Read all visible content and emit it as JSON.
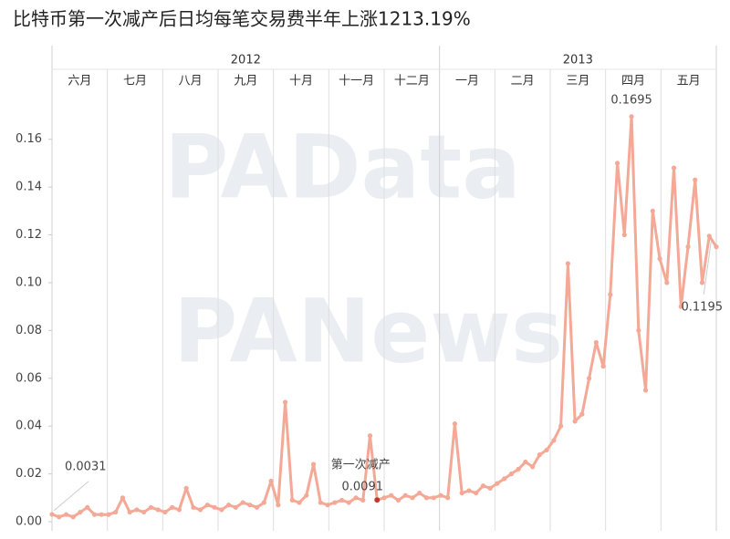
{
  "chart_data": {
    "type": "line",
    "title": "比特币第一次减产后日均每笔交易费半年上涨1213.19%",
    "years": [
      {
        "label": "2012",
        "months": [
          "六月",
          "七月",
          "八月",
          "九月",
          "十月",
          "十一月",
          "十二月"
        ]
      },
      {
        "label": "2013",
        "months": [
          "一月",
          "二月",
          "三月",
          "四月",
          "五月"
        ]
      }
    ],
    "watermarks": [
      "PAData",
      "PANews"
    ],
    "annotation": "第一次减产",
    "ylim": [
      -0.0038,
      0.203
    ],
    "yticks": [
      {
        "value": 0,
        "label": "0.00"
      },
      {
        "value": 0.02,
        "label": "0.02"
      },
      {
        "value": 0.04,
        "label": "0.04"
      },
      {
        "value": 0.06,
        "label": "0.06"
      },
      {
        "value": 0.08,
        "label": "0.08"
      },
      {
        "value": 0.1,
        "label": "0.10"
      },
      {
        "value": 0.12,
        "label": "0.12"
      },
      {
        "value": 0.14,
        "label": "0.14"
      },
      {
        "value": 0.16,
        "label": "0.16"
      }
    ],
    "series": [
      {
        "name": "日均每笔交易费",
        "color": "#f4a896",
        "values": [
          0.0031,
          0.002,
          0.003,
          0.002,
          0.004,
          0.006,
          0.003,
          0.003,
          0.003,
          0.004,
          0.01,
          0.004,
          0.005,
          0.004,
          0.006,
          0.005,
          0.004,
          0.006,
          0.005,
          0.014,
          0.006,
          0.005,
          0.007,
          0.006,
          0.005,
          0.007,
          0.006,
          0.008,
          0.007,
          0.006,
          0.008,
          0.017,
          0.007,
          0.05,
          0.009,
          0.008,
          0.011,
          0.024,
          0.008,
          0.007,
          0.008,
          0.009,
          0.008,
          0.01,
          0.009,
          0.036,
          0.0091,
          0.01,
          0.011,
          0.009,
          0.011,
          0.01,
          0.012,
          0.01,
          0.01,
          0.011,
          0.01,
          0.041,
          0.012,
          0.013,
          0.012,
          0.015,
          0.014,
          0.016,
          0.018,
          0.02,
          0.022,
          0.025,
          0.023,
          0.028,
          0.03,
          0.034,
          0.04,
          0.108,
          0.042,
          0.045,
          0.06,
          0.075,
          0.065,
          0.095,
          0.15,
          0.12,
          0.1695,
          0.08,
          0.055,
          0.13,
          0.11,
          0.1,
          0.148,
          0.09,
          0.115,
          0.143,
          0.1,
          0.1195,
          0.115
        ],
        "value_labels": [
          "0.0031",
          null,
          null,
          null,
          null,
          null,
          null,
          null,
          null,
          null,
          null,
          null,
          null,
          null,
          null,
          null,
          null,
          null,
          null,
          null,
          null,
          null,
          null,
          null,
          null,
          null,
          null,
          null,
          null,
          null,
          null,
          null,
          null,
          null,
          null,
          null,
          null,
          null,
          null,
          null,
          null,
          null,
          null,
          null,
          null,
          null,
          "0.0091",
          null,
          null,
          null,
          null,
          null,
          null,
          null,
          null,
          null,
          null,
          null,
          null,
          null,
          null,
          null,
          null,
          null,
          null,
          null,
          null,
          null,
          null,
          null,
          null,
          null,
          null,
          null,
          null,
          null,
          null,
          null,
          null,
          null,
          null,
          null,
          "0.1695",
          null,
          null,
          null,
          null,
          null,
          null,
          null,
          null,
          null,
          null,
          "0.1195",
          null
        ]
      }
    ]
  }
}
